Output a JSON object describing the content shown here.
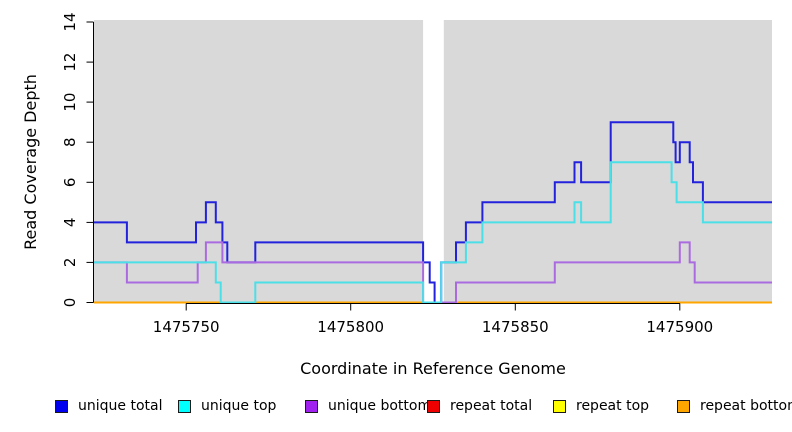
{
  "colors": {
    "plot_background": "#d9d9d9",
    "gap": "#ffffff",
    "axis": "#000000"
  },
  "chart_data": {
    "type": "line",
    "style": "step",
    "title": "",
    "xlabel": "Coordinate in Reference Genome",
    "ylabel": "Read Coverage Depth",
    "xlim": [
      1475722,
      1475928
    ],
    "ylim": [
      0,
      14
    ],
    "x_ticks": [
      1475750,
      1475800,
      1475850,
      1475900
    ],
    "y_ticks": [
      0,
      2,
      4,
      6,
      8,
      10,
      12,
      14
    ],
    "x_end": 1475928,
    "grid": false,
    "legend_position": "bottom",
    "gap_region": [
      1475822,
      1475828.3
    ],
    "series": [
      {
        "name": "repeat total",
        "color": "#dd0000",
        "points": [
          [
            1475722,
            0
          ]
        ]
      },
      {
        "name": "repeat top",
        "color": "#ffff00",
        "points": [
          [
            1475722,
            0
          ]
        ]
      },
      {
        "name": "repeat bottom",
        "color": "#ffa500",
        "points": [
          [
            1475722,
            0
          ]
        ]
      },
      {
        "name": "unique total",
        "color": "#2222dd",
        "points": [
          [
            1475722,
            4
          ],
          [
            1475732,
            3
          ],
          [
            1475753,
            4
          ],
          [
            1475756,
            5
          ],
          [
            1475759,
            4
          ],
          [
            1475761,
            3
          ],
          [
            1475762.5,
            2
          ],
          [
            1475771,
            3
          ],
          [
            1475822,
            2
          ],
          [
            1475824,
            1
          ],
          [
            1475825.5,
            0
          ],
          [
            1475827.5,
            2
          ],
          [
            1475832,
            3
          ],
          [
            1475835,
            4
          ],
          [
            1475840,
            5
          ],
          [
            1475862,
            6
          ],
          [
            1475868,
            7
          ],
          [
            1475870,
            6
          ],
          [
            1475879,
            9
          ],
          [
            1475898,
            8
          ],
          [
            1475898.7,
            7
          ],
          [
            1475900,
            8
          ],
          [
            1475903,
            7
          ],
          [
            1475904,
            6
          ],
          [
            1475907,
            5
          ]
        ]
      },
      {
        "name": "unique bottom",
        "color": "#ab6be0",
        "points": [
          [
            1475722,
            2
          ],
          [
            1475732,
            1
          ],
          [
            1475753.5,
            2
          ],
          [
            1475756,
            3
          ],
          [
            1475761,
            2
          ],
          [
            1475822,
            0
          ],
          [
            1475832,
            1
          ],
          [
            1475862,
            2
          ],
          [
            1475900,
            3
          ],
          [
            1475903,
            2
          ],
          [
            1475904.5,
            1
          ]
        ]
      },
      {
        "name": "unique top",
        "color": "#4bdfe8",
        "points": [
          [
            1475722,
            2
          ],
          [
            1475759,
            1
          ],
          [
            1475760.5,
            0
          ],
          [
            1475771,
            1
          ],
          [
            1475822,
            0
          ],
          [
            1475827.5,
            2
          ],
          [
            1475835,
            3
          ],
          [
            1475840,
            4
          ],
          [
            1475868,
            5
          ],
          [
            1475870,
            4
          ],
          [
            1475879,
            7
          ],
          [
            1475897.5,
            6
          ],
          [
            1475899,
            5
          ],
          [
            1475907,
            4
          ]
        ]
      }
    ]
  },
  "legend": {
    "items": [
      {
        "label": "unique total",
        "fill": "#0000ee"
      },
      {
        "label": "unique top",
        "fill": "#00ffff"
      },
      {
        "label": "unique bottom",
        "fill": "#a020f0"
      },
      {
        "label": "repeat total",
        "fill": "#ee0000"
      },
      {
        "label": "repeat top",
        "fill": "#ffff00"
      },
      {
        "label": "repeat bottom",
        "fill": "#ffa500"
      }
    ]
  }
}
